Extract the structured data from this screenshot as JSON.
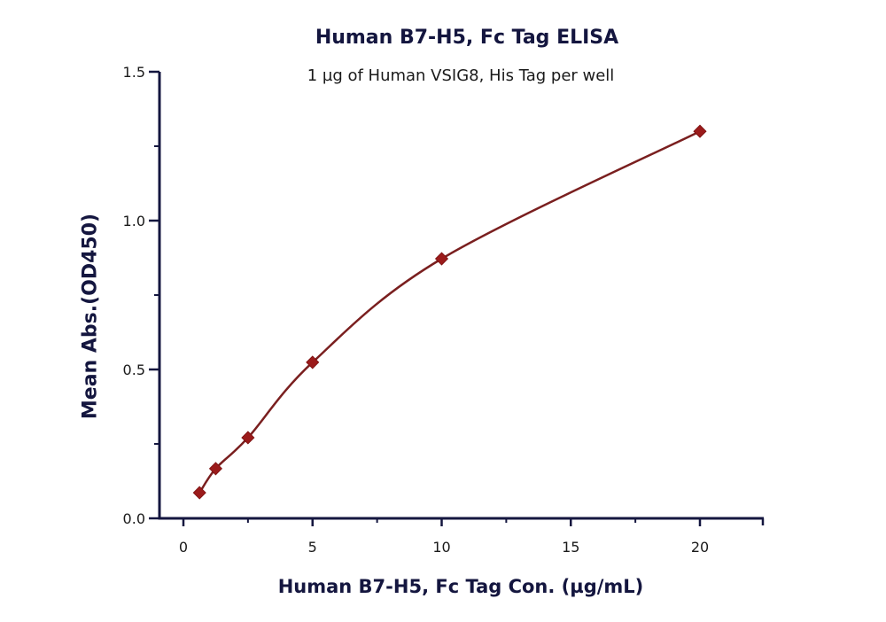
{
  "chart_data": {
    "type": "line",
    "title": "Human B7-H5, Fc Tag ELISA",
    "subtitle": "1 µg of Human VSIG8, His Tag per well",
    "xlabel": "Human B7-H5, Fc Tag Con. (µg/mL)",
    "ylabel": "Mean Abs.(OD450)",
    "xlim": [
      -1,
      22.5
    ],
    "ylim": [
      0,
      1.5
    ],
    "x_ticks": [
      0,
      5,
      10,
      15,
      20
    ],
    "x_tick_labels": [
      "0",
      "5",
      "10",
      "15",
      "20"
    ],
    "y_ticks": [
      0.0,
      0.5,
      1.0,
      1.5
    ],
    "y_tick_labels": [
      "0.0",
      "0.5",
      "1.0",
      "1.5"
    ],
    "grid": false,
    "legend": null,
    "series": [
      {
        "name": "Human B7-H5, Fc Tag",
        "marker": "diamond",
        "color": "#9b1b1b",
        "line_color": "#7a1f1f",
        "fit": "smooth curve",
        "x": [
          0.625,
          1.25,
          2.5,
          5,
          10,
          20
        ],
        "y": [
          0.086,
          0.167,
          0.271,
          0.524,
          0.872,
          1.3
        ]
      }
    ]
  },
  "colors": {
    "axis": "#14163f",
    "marker": "#9b1b1b",
    "curve": "#7a1f1f"
  }
}
